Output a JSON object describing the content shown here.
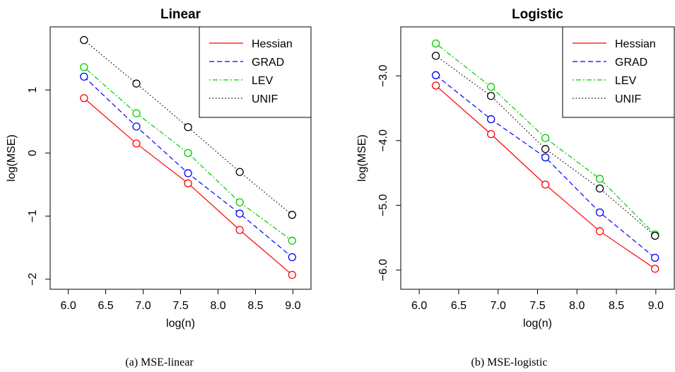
{
  "chart_data": [
    {
      "type": "line",
      "title": "Linear",
      "caption": "(a)  MSE-linear",
      "xlabel": "log(n)",
      "ylabel": "log(MSE)",
      "xlim": [
        6.0,
        9.0
      ],
      "ylim": [
        -2.0,
        1.8
      ],
      "xticks": [
        6.0,
        6.5,
        7.0,
        7.5,
        8.0,
        8.5,
        9.0
      ],
      "xtick_labels": [
        "6.0",
        "6.5",
        "7.0",
        "7.5",
        "8.0",
        "8.5",
        "9.0"
      ],
      "yticks": [
        -2,
        -1,
        0,
        1
      ],
      "ytick_labels": [
        "−2",
        "−1",
        "0",
        "1"
      ],
      "x": [
        6.21,
        6.91,
        7.6,
        8.29,
        8.99
      ],
      "series": [
        {
          "name": "Hessian",
          "color": "#ff0000",
          "dash": "solid",
          "values": [
            0.87,
            0.15,
            -0.48,
            -1.22,
            -1.93
          ]
        },
        {
          "name": "GRAD",
          "color": "#0000ff",
          "dash": "dashed",
          "values": [
            1.21,
            0.42,
            -0.32,
            -0.96,
            -1.65
          ]
        },
        {
          "name": "LEV",
          "color": "#00cc00",
          "dash": "dotdash",
          "values": [
            1.36,
            0.63,
            0.0,
            -0.78,
            -1.39
          ]
        },
        {
          "name": "UNIF",
          "color": "#000000",
          "dash": "dotted",
          "values": [
            1.79,
            1.1,
            0.41,
            -0.3,
            -0.98
          ]
        }
      ],
      "grid": false,
      "legend_position": "top-right"
    },
    {
      "type": "line",
      "title": "Logistic",
      "caption": "(b)  MSE-logistic",
      "xlabel": "log(n)",
      "ylabel": "log(MSE)",
      "xlim": [
        6.0,
        9.0
      ],
      "ylim": [
        -6.0,
        -2.5
      ],
      "xticks": [
        6.0,
        6.5,
        7.0,
        7.5,
        8.0,
        8.5,
        9.0
      ],
      "xtick_labels": [
        "6.0",
        "6.5",
        "7.0",
        "7.5",
        "8.0",
        "8.5",
        "9.0"
      ],
      "yticks": [
        -6,
        -5,
        -4,
        -3
      ],
      "ytick_labels": [
        "−6.0",
        "−5.0",
        "−4.0",
        "−3.0"
      ],
      "x": [
        6.21,
        6.91,
        7.6,
        8.29,
        8.99
      ],
      "series": [
        {
          "name": "Hessian",
          "color": "#ff0000",
          "dash": "solid",
          "values": [
            -3.15,
            -3.9,
            -4.68,
            -5.4,
            -5.98
          ]
        },
        {
          "name": "GRAD",
          "color": "#0000ff",
          "dash": "dashed",
          "values": [
            -2.99,
            -3.67,
            -4.26,
            -5.11,
            -5.81
          ]
        },
        {
          "name": "LEV",
          "color": "#00cc00",
          "dash": "dotdash",
          "values": [
            -2.5,
            -3.17,
            -3.96,
            -4.59,
            -5.45
          ]
        },
        {
          "name": "UNIF",
          "color": "#000000",
          "dash": "dotted",
          "values": [
            -2.69,
            -3.31,
            -4.13,
            -4.74,
            -5.47
          ]
        }
      ],
      "grid": false,
      "legend_position": "top-right"
    }
  ]
}
